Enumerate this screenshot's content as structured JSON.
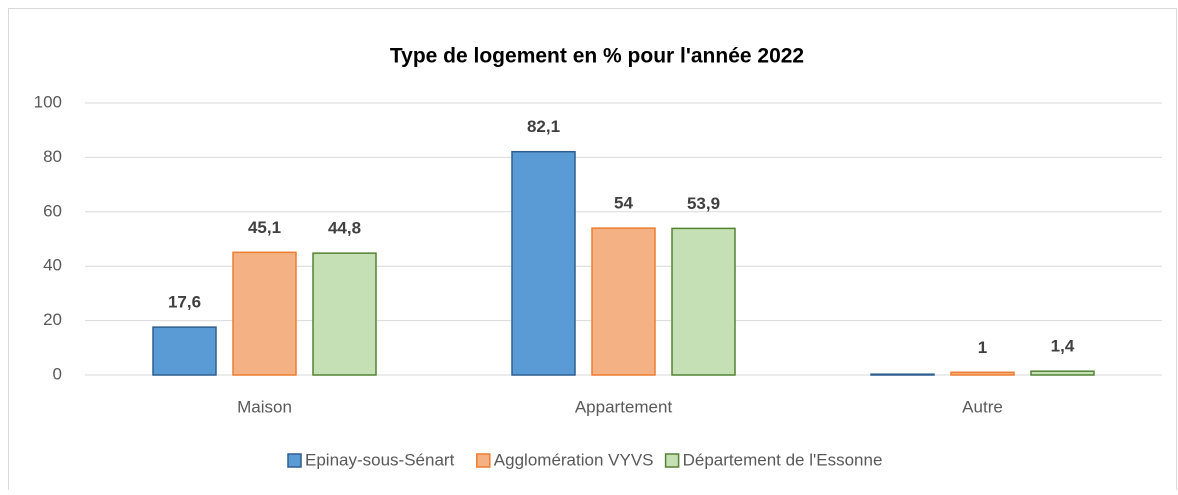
{
  "chart_data": {
    "type": "bar",
    "title": "Type de logement en % pour l'année 2022",
    "categories": [
      "Maison",
      "Appartement",
      "Autre"
    ],
    "series": [
      {
        "name": "Epinay-sous-Sénart",
        "color": "#5b9bd5",
        "edge_color": "#2f5f8f",
        "values": [
          17.6,
          82.1,
          0.3
        ],
        "value_labels": [
          "17,6",
          "82,1",
          null
        ]
      },
      {
        "name": "Agglomération VYVS",
        "color": "#f4b183",
        "edge_color": "#ed7d31",
        "values": [
          45.1,
          54,
          1
        ],
        "value_labels": [
          "45,1",
          "54",
          "1"
        ]
      },
      {
        "name": "Département de l'Essonne",
        "color": "#c5e0b4",
        "edge_color": "#548235",
        "values": [
          44.8,
          53.9,
          1.4
        ],
        "value_labels": [
          "44,8",
          "53,9",
          "1,4"
        ]
      }
    ],
    "ylim": [
      0,
      100
    ],
    "yticks": [
      0,
      20,
      40,
      60,
      80,
      100
    ],
    "grid": true,
    "legend": "bottom"
  }
}
